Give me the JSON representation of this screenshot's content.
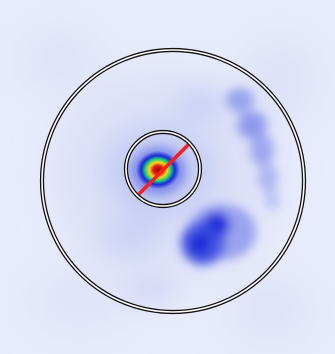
{
  "image": {
    "kind": "false-color astronomical intensity map",
    "colors": {
      "background": "#e6e9fa",
      "low_emission": "#b9c0f0",
      "mid_emission": "#5e6ee6",
      "high_emission": "#1a2ad8",
      "peak_core": "#d41a0e",
      "peak_mid": "#ffd51a",
      "peak_outer": "#1fd07a",
      "marker_line": "#ff1e1e",
      "ring_stroke": "#111111",
      "ring_fill": "#ffffff"
    },
    "annotations": [
      {
        "name": "outer-annulus",
        "shape": "double circle"
      },
      {
        "name": "inner-annulus",
        "shape": "double circle"
      },
      {
        "name": "position-angle-line",
        "shape": "line"
      }
    ]
  }
}
